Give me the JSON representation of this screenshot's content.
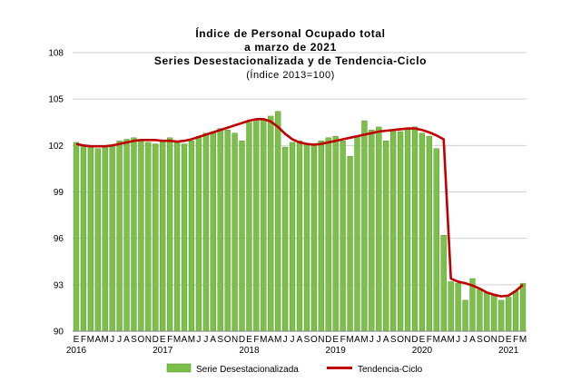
{
  "chart_data": {
    "type": "bar",
    "title_lines": [
      "Índice de Personal Ocupado total",
      "a marzo de 2021",
      "Series Desestacionalizada y de Tendencia-Ciclo"
    ],
    "subtitle": "(Índice 2013=100)",
    "ylim": [
      90,
      108
    ],
    "yticks": [
      90,
      93,
      96,
      99,
      102,
      105,
      108
    ],
    "month_labels": [
      "E",
      "F",
      "M",
      "A",
      "M",
      "J",
      "J",
      "A",
      "S",
      "O",
      "N",
      "D",
      "E",
      "F",
      "M",
      "A",
      "M",
      "J",
      "J",
      "A",
      "S",
      "O",
      "N",
      "D",
      "E",
      "F",
      "M",
      "A",
      "M",
      "J",
      "J",
      "A",
      "S",
      "O",
      "N",
      "D",
      "E",
      "F",
      "M",
      "A",
      "M",
      "J",
      "J",
      "A",
      "S",
      "O",
      "N",
      "D",
      "E",
      "F",
      "M",
      "A",
      "M",
      "J",
      "J",
      "A",
      "S",
      "O",
      "N",
      "D",
      "E",
      "F",
      "M"
    ],
    "years": [
      "2016",
      "2017",
      "2018",
      "2019",
      "2020",
      "2021"
    ],
    "series": [
      {
        "name": "Serie Desestacionalizada",
        "kind": "bar",
        "color": "#7cc04a",
        "values": [
          102.2,
          102.0,
          101.9,
          101.8,
          101.9,
          102.0,
          102.3,
          102.4,
          102.5,
          102.4,
          102.2,
          102.1,
          102.3,
          102.5,
          102.2,
          102.1,
          102.3,
          102.6,
          102.8,
          102.9,
          103.1,
          103.0,
          102.8,
          102.3,
          103.5,
          103.7,
          103.7,
          103.9,
          104.2,
          101.9,
          102.2,
          102.3,
          102.1,
          102.1,
          102.3,
          102.5,
          102.6,
          102.3,
          101.3,
          102.6,
          103.6,
          103.0,
          103.2,
          102.3,
          102.9,
          102.9,
          103.1,
          103.2,
          102.8,
          102.6,
          101.8,
          96.2,
          93.2,
          93.1,
          92.0,
          93.4,
          92.7,
          92.5,
          92.4,
          92.0,
          92.2,
          92.6,
          93.1
        ]
      },
      {
        "name": "Tendencia-Ciclo",
        "kind": "line",
        "color": "#c00000",
        "values": [
          102.1,
          102.0,
          101.95,
          101.95,
          101.95,
          102.0,
          102.1,
          102.2,
          102.3,
          102.35,
          102.35,
          102.35,
          102.3,
          102.3,
          102.25,
          102.3,
          102.4,
          102.55,
          102.7,
          102.85,
          103.0,
          103.15,
          103.3,
          103.45,
          103.6,
          103.7,
          103.7,
          103.55,
          103.2,
          102.75,
          102.4,
          102.2,
          102.1,
          102.05,
          102.1,
          102.2,
          102.3,
          102.4,
          102.5,
          102.6,
          102.7,
          102.8,
          102.9,
          102.95,
          103.0,
          103.05,
          103.1,
          103.1,
          103.0,
          102.85,
          102.65,
          102.4,
          93.4,
          93.2,
          93.1,
          92.95,
          92.75,
          92.5,
          92.35,
          92.25,
          92.3,
          92.6,
          93.0
        ]
      }
    ],
    "legend_position": "bottom",
    "grid": true
  }
}
